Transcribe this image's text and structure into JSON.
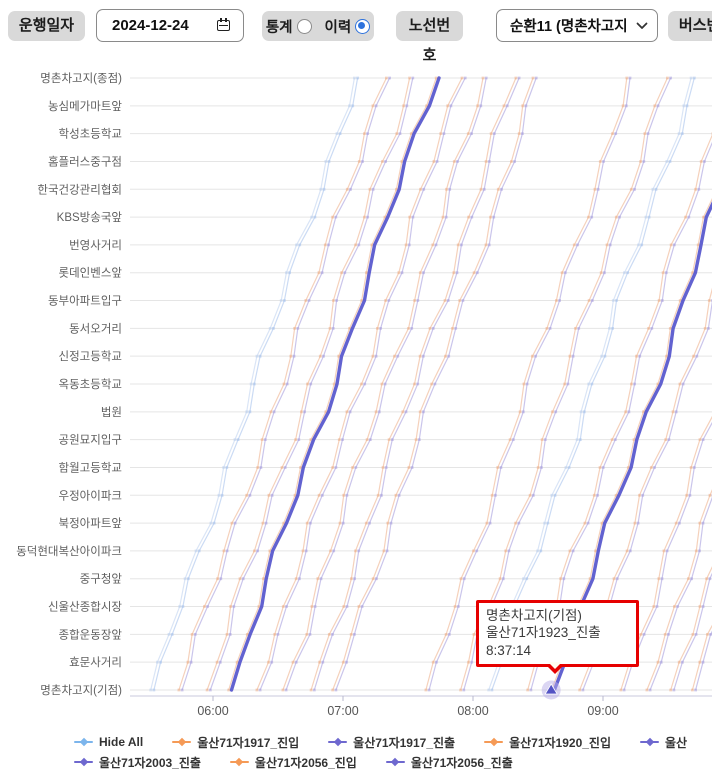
{
  "toolbar": {
    "date_button_label": "운행일자",
    "date_value": "2024-12-24",
    "radio_options": [
      {
        "label": "통계",
        "selected": false
      },
      {
        "label": "이력",
        "selected": true
      }
    ],
    "route_button_label": "노선번호",
    "route_select_value": "순환11 (명촌차고지",
    "bus_button_label": "버스번호"
  },
  "chart_data": {
    "type": "line",
    "title": "",
    "description": "Time-station string diagram of bus trips (route 순환11) on 2024-12-24",
    "stations_top_to_bottom": [
      "명촌차고지(종점)",
      "농심메가마트앞",
      "학성초등학교",
      "홈플러스중구점",
      "한국건강관리협회",
      "KBS방송국앞",
      "번영사거리",
      "롯데인벤스앞",
      "동부아파트입구",
      "동서오거리",
      "신정고등학교",
      "옥동초등학교",
      "법원",
      "공원묘지입구",
      "함월고등학교",
      "우정아이파크",
      "북정아파트앞",
      "동덕현대복산아이파크",
      "중구청앞",
      "신울산종합시장",
      "종합운동장앞",
      "효문사거리",
      "명촌차고지(기점)"
    ],
    "x_ticks": [
      "06:00",
      "07:00",
      "08:00",
      "09:00"
    ],
    "x_visible_range": [
      "05:22",
      "09:50"
    ],
    "trip_duration_minutes": 94,
    "trips": [
      {
        "depart": "05:32",
        "tint": "blue"
      },
      {
        "depart": "05:45"
      },
      {
        "depart": "05:58"
      },
      {
        "depart": "06:08",
        "emphasis": true
      },
      {
        "depart": "06:21"
      },
      {
        "depart": "06:33"
      },
      {
        "depart": "06:46"
      },
      {
        "depart": "06:56"
      },
      {
        "depart": "07:39"
      },
      {
        "depart": "07:55"
      },
      {
        "depart": "08:08",
        "tint": "blue"
      },
      {
        "depart": "08:26"
      },
      {
        "depart": "08:37",
        "emphasis": true,
        "label": "울산71자1923_진출"
      },
      {
        "depart": "08:50"
      },
      {
        "depart": "09:09"
      },
      {
        "depart": "09:21"
      },
      {
        "depart": "09:32"
      },
      {
        "depart": "09:42"
      },
      {
        "depart": "09:52"
      }
    ],
    "colors": {
      "faint_in": "#edac84",
      "faint_out": "#a79ede",
      "blue_in": "#bcd0ee",
      "blue_out": "#a8c3ec",
      "emphasis": "#5656cc",
      "grid": "#e5e5e5",
      "axis": "#c9c9dc",
      "tick": "#b9b9cf",
      "station_label": "#5f5f5f",
      "tick_label": "#555555",
      "halo": "#b7aee8",
      "marker_triangle": "#5353c4"
    },
    "tooltip": {
      "station": "명촌차고지(기점)",
      "series": "울산71자1923_진출",
      "time": "8:37:14"
    },
    "legend": {
      "rows": [
        [
          {
            "label": "Hide All",
            "color": "#7cb5ec"
          },
          {
            "label": "울산71자1917_진입",
            "color": "#f59a56"
          },
          {
            "label": "울산71자1917_진출",
            "color": "#6e68cf"
          },
          {
            "label": "울산71자1920_진입",
            "color": "#f59a56"
          },
          {
            "label": "울산",
            "color": "#6e68cf",
            "truncated": true
          }
        ],
        [
          {
            "label": "울산71자2003_진출",
            "color": "#6e68cf"
          },
          {
            "label": "울산71자2056_진입",
            "color": "#f59a56"
          },
          {
            "label": "울산71자2056_진출",
            "color": "#6e68cf"
          }
        ]
      ]
    }
  }
}
